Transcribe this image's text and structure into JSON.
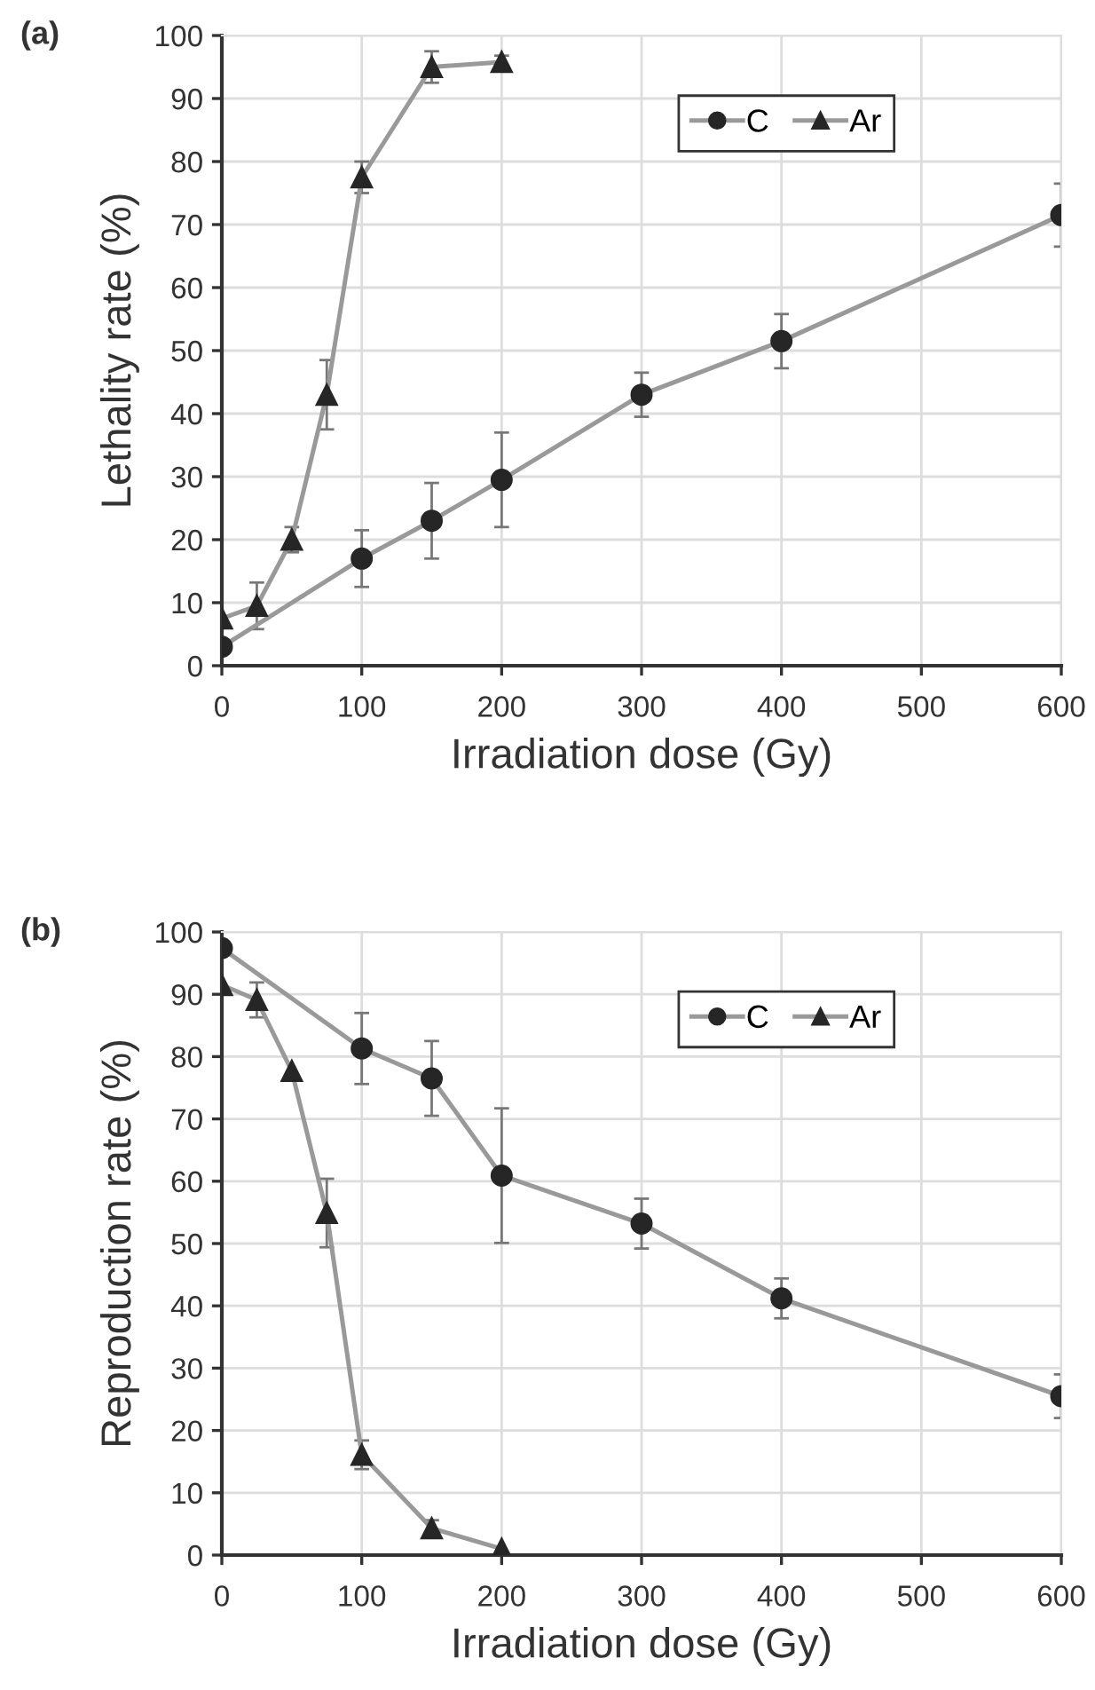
{
  "chart_data": [
    {
      "type": "line",
      "title": "(a)",
      "xlabel": "Irradiation dose (Gy)",
      "ylabel": "Lethality rate (%)",
      "xlim": [
        0,
        600
      ],
      "xticks": [
        0,
        100,
        200,
        300,
        400,
        500,
        600
      ],
      "ylim": [
        0,
        100
      ],
      "yticks": [
        0,
        10,
        20,
        30,
        40,
        50,
        60,
        70,
        80,
        90,
        100
      ],
      "grid": true,
      "legend": "top right",
      "series": [
        {
          "name": "C",
          "color": "#262626",
          "marker": "circle",
          "x": [
            0,
            100,
            150,
            200,
            300,
            400,
            600
          ],
          "values": [
            3,
            17,
            23,
            29.5,
            43,
            51.5,
            71.5
          ],
          "errors": [
            null,
            4.5,
            6,
            7.5,
            3.5,
            4.3,
            5
          ]
        },
        {
          "name": "Ar",
          "color": "#262626",
          "marker": "triangle",
          "x": [
            0,
            25,
            50,
            75,
            100,
            150,
            200
          ],
          "values": [
            7.5,
            9.5,
            20,
            43,
            77.5,
            95,
            95.8
          ],
          "errors": [
            null,
            3.7,
            2,
            5.5,
            2.5,
            2.5,
            1
          ]
        }
      ]
    },
    {
      "type": "line",
      "title": "(b)",
      "xlabel": "Irradiation dose (Gy)",
      "ylabel": "Reproduction rate (%)",
      "xlim": [
        0,
        600
      ],
      "xticks": [
        0,
        100,
        200,
        300,
        400,
        500,
        600
      ],
      "ylim": [
        0,
        100
      ],
      "yticks": [
        0,
        10,
        20,
        30,
        40,
        50,
        60,
        70,
        80,
        90,
        100
      ],
      "grid": true,
      "legend": "top right",
      "series": [
        {
          "name": "C",
          "color": "#262626",
          "marker": "circle",
          "x": [
            0,
            100,
            150,
            200,
            300,
            400,
            600
          ],
          "values": [
            97.4,
            81.3,
            76.5,
            60.9,
            53.2,
            41.2,
            25.5
          ],
          "errors": [
            null,
            5.7,
            6,
            10.8,
            4,
            3.2,
            3.5
          ]
        },
        {
          "name": "Ar",
          "color": "#262626",
          "marker": "triangle",
          "x": [
            0,
            25,
            50,
            75,
            100,
            150,
            200
          ],
          "values": [
            91.5,
            89.1,
            77.7,
            54.9,
            16.1,
            4.3,
            1
          ],
          "errors": [
            null,
            2.8,
            null,
            5.5,
            2.3,
            1.3,
            null
          ]
        }
      ]
    }
  ]
}
